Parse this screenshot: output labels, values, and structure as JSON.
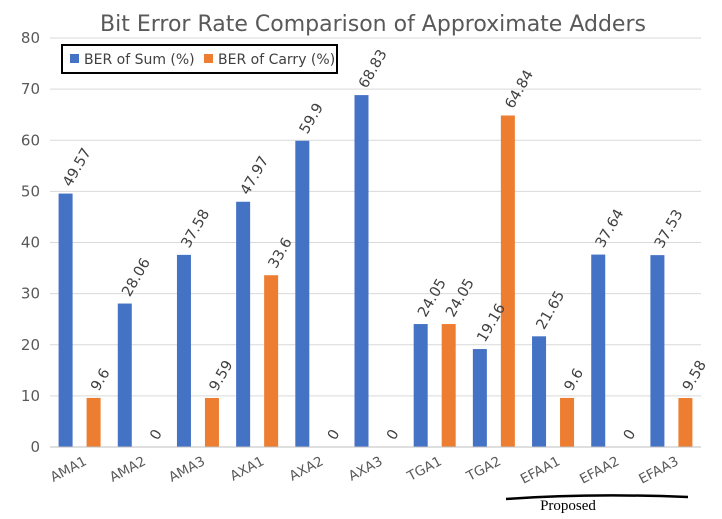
{
  "chart_data": {
    "type": "bar",
    "title": "Bit Error Rate Comparison of Approximate Adders",
    "xlabel": "",
    "ylabel": "",
    "ylim": [
      0,
      80
    ],
    "yticks": [
      0,
      10,
      20,
      30,
      40,
      50,
      60,
      70,
      80
    ],
    "grid": true,
    "legend_position": "top-left",
    "categories": [
      "AMA1",
      "AMA2",
      "AMA3",
      "AXA1",
      "AXA2",
      "AXA3",
      "TGA1",
      "TGA2",
      "EFAA1",
      "EFAA2",
      "EFAA3"
    ],
    "series": [
      {
        "name": "BER of Sum (%)",
        "color": "#4472C4",
        "values": [
          49.57,
          28.06,
          37.58,
          47.97,
          59.9,
          68.83,
          24.05,
          19.16,
          21.65,
          37.64,
          37.53
        ],
        "labels": [
          "49.57",
          "28.06",
          "37.58",
          "47.97",
          "59.9",
          "68.83",
          "24.05",
          "19.16",
          "21.65",
          "37.64",
          "37.53"
        ]
      },
      {
        "name": "BER of Carry (%)",
        "color": "#ED7D31",
        "values": [
          9.6,
          0,
          9.59,
          33.6,
          0,
          0,
          24.05,
          64.84,
          9.6,
          0,
          9.58
        ],
        "labels": [
          "9.6",
          "0",
          "9.59",
          "33.6",
          "0",
          "0",
          "24.05",
          "64.84",
          "9.6",
          "0",
          "9.58"
        ]
      }
    ],
    "annotation": {
      "text": "Proposed",
      "spans": [
        "EFAA1",
        "EFAA2",
        "EFAA3"
      ]
    }
  }
}
